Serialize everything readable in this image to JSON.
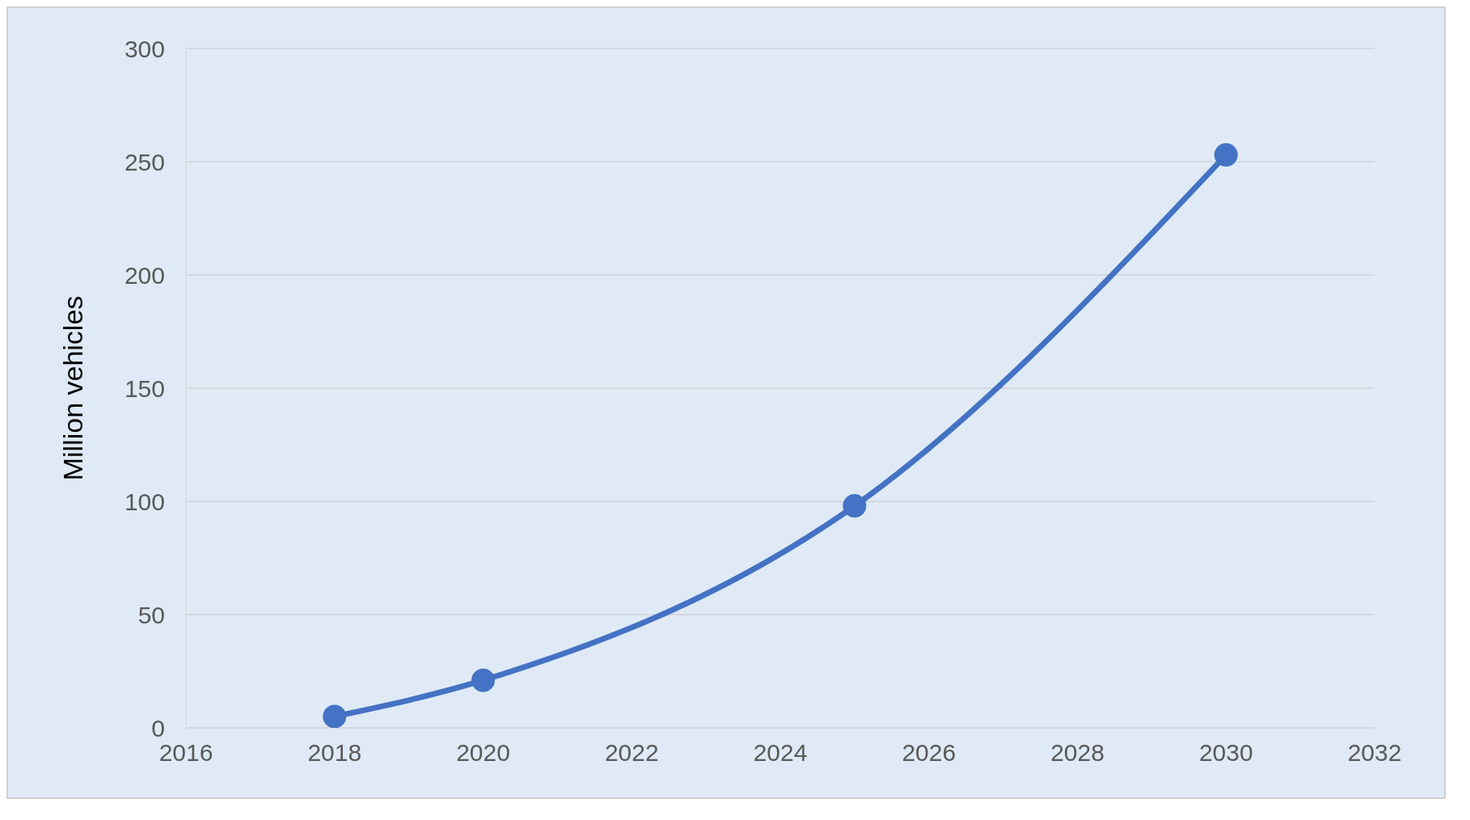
{
  "chart_data": {
    "type": "line",
    "ylabel": "Million vehicles",
    "x": [
      2018,
      2020,
      2025,
      2030
    ],
    "series": [
      {
        "color": "#4472c4",
        "values": [
          5,
          21,
          98,
          253
        ]
      }
    ],
    "xlim": [
      2016,
      2032
    ],
    "xticks": [
      2016,
      2018,
      2020,
      2022,
      2024,
      2026,
      2028,
      2030,
      2032
    ],
    "ylim": [
      0,
      300
    ],
    "yticks": [
      0,
      50,
      100,
      150,
      200,
      250,
      300
    ],
    "grid": "y",
    "marker": "circle",
    "line_style": "solid",
    "legend": false
  }
}
